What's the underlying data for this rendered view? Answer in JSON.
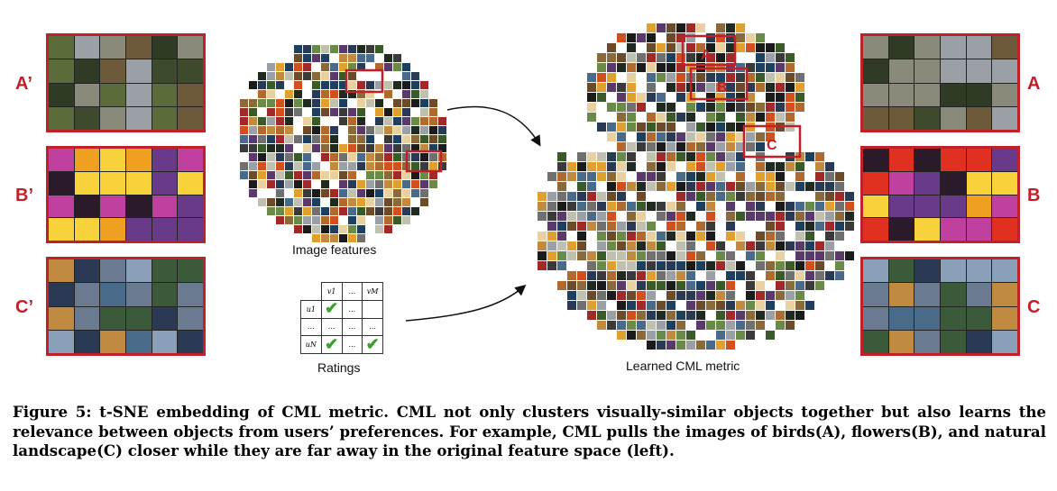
{
  "figure": {
    "left_labels": [
      "A’",
      "B’",
      "C’"
    ],
    "right_labels": [
      "A",
      "B",
      "C"
    ],
    "inner_labels": [
      "A",
      "B",
      "C"
    ],
    "image_features_label": "Image features",
    "ratings_label": "Ratings",
    "learned_label": "Learned CML metric",
    "ratings_table": {
      "col_headers": [
        "v1",
        "...",
        "vM"
      ],
      "row_headers": [
        "u1",
        "...",
        "uN"
      ],
      "cells": [
        [
          "check",
          "...",
          ""
        ],
        [
          "...",
          "...",
          "..."
        ],
        [
          "check",
          "...",
          "check"
        ]
      ]
    },
    "colors": {
      "highlight": "#c0202a",
      "check": "#3aa12e",
      "panel_A": [
        "#5b6b3a",
        "#8a8a7a",
        "#3e4a2c",
        "#9aa0a6",
        "#6d5a3a",
        "#2f3b25"
      ],
      "panel_B": [
        "#e03020",
        "#f0a020",
        "#c040a0",
        "#2a1a2a",
        "#f7d23a",
        "#6a3a8a"
      ],
      "panel_C": [
        "#4a6a8a",
        "#2a3a55",
        "#8aa0b8",
        "#c08a40",
        "#3a5a3a",
        "#6a7a90"
      ]
    },
    "caption": "Figure 5: t-SNE embedding of CML metric. CML not only clusters visually-similar objects together but also learns the relevance between objects from users’ preferences. For example, CML pulls the images of birds(A), flowers(B), and natural landscape(C) closer while they are far away in the original feature space (left)."
  }
}
